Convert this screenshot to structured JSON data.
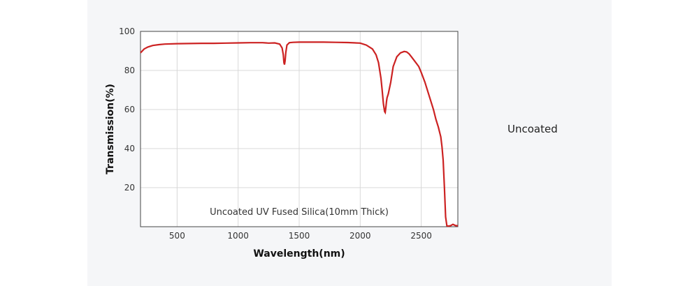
{
  "side_label": "Uncoated",
  "chart_data": {
    "type": "line",
    "title": "",
    "annotation": "Uncoated UV Fused Silica(10mm Thick)",
    "xlabel": "Wavelength(nm)",
    "ylabel": "Transmission(%)",
    "xlim": [
      200,
      2800
    ],
    "ylim": [
      0,
      100
    ],
    "xticks": [
      500,
      1000,
      1500,
      2000,
      2500
    ],
    "yticks": [
      20,
      40,
      60,
      80,
      100
    ],
    "grid": true,
    "line_color": "#cc2222",
    "series": [
      {
        "x": [
          200,
          230,
          260,
          300,
          350,
          400,
          500,
          600,
          700,
          800,
          900,
          1000,
          1100,
          1200,
          1250,
          1300,
          1340,
          1360,
          1370,
          1375,
          1380,
          1385,
          1390,
          1400,
          1420,
          1450,
          1500,
          1600,
          1700,
          1800,
          1900,
          2000,
          2050,
          2100,
          2130,
          2150,
          2170,
          2180,
          2190,
          2200,
          2205,
          2210,
          2215,
          2220,
          2230,
          2250,
          2270,
          2300,
          2330,
          2360,
          2380,
          2400,
          2420,
          2450,
          2480,
          2500,
          2530,
          2560,
          2600,
          2620,
          2640,
          2660,
          2670,
          2680,
          2690,
          2700,
          2710,
          2720,
          2740,
          2760,
          2780,
          2800
        ],
        "values": [
          89,
          91,
          92,
          92.8,
          93.2,
          93.5,
          93.7,
          93.8,
          93.9,
          93.9,
          94.0,
          94.1,
          94.2,
          94.2,
          94.0,
          94.1,
          93.5,
          91.5,
          88,
          84,
          83,
          85,
          89,
          93,
          94.2,
          94.4,
          94.5,
          94.5,
          94.5,
          94.4,
          94.3,
          94.0,
          93.0,
          91.0,
          88,
          84,
          76,
          70,
          63,
          59,
          58.5,
          61,
          64,
          66,
          68,
          74,
          82,
          87,
          89,
          89.7,
          89.5,
          88.5,
          87,
          84.5,
          82,
          79,
          74,
          68,
          60,
          55,
          51,
          46,
          41,
          34,
          20,
          5,
          0.5,
          0.3,
          0.5,
          1.2,
          0.6,
          0.5
        ]
      }
    ]
  }
}
